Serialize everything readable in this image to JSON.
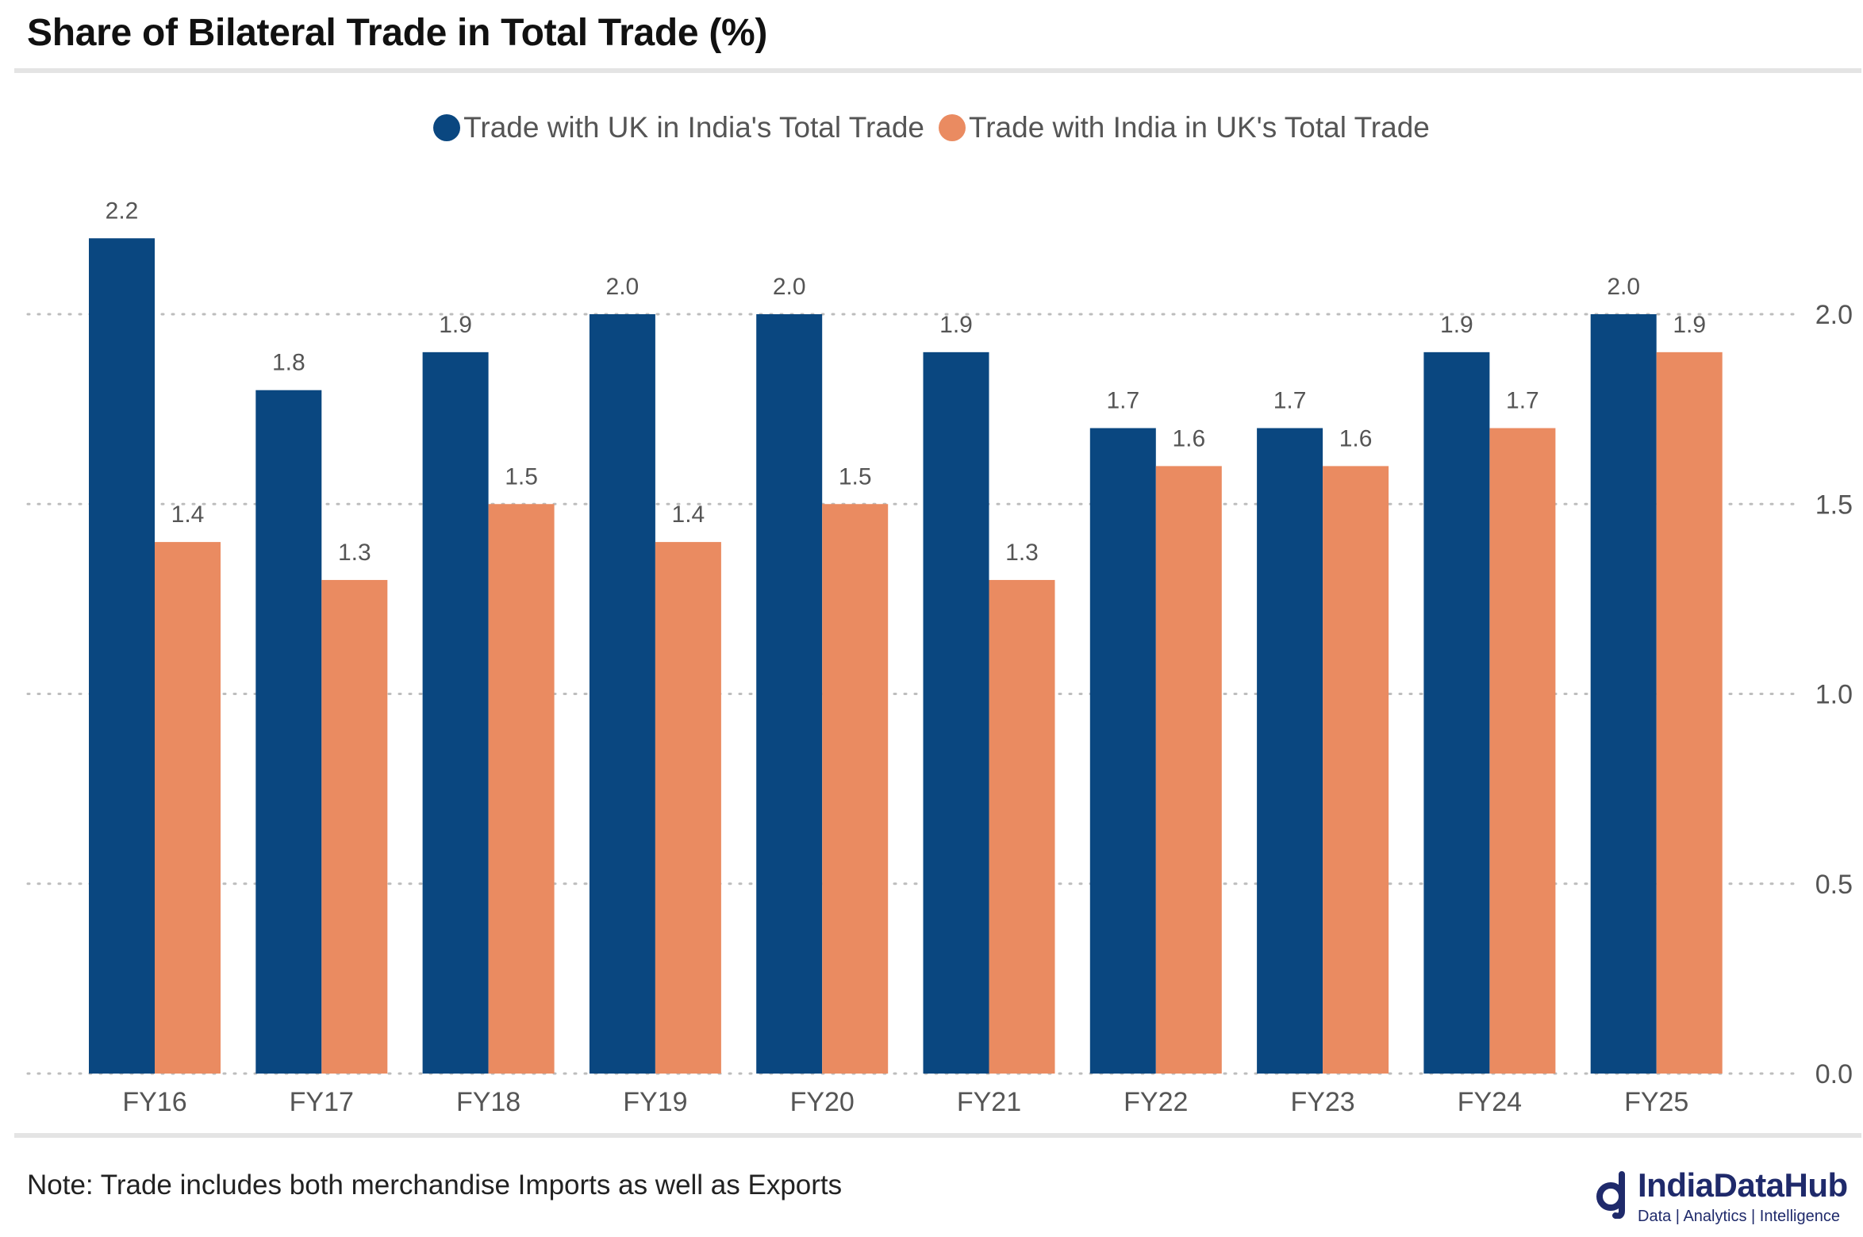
{
  "title": "Share of Bilateral Trade in Total Trade (%)",
  "note": "Note: Trade includes both merchandise Imports as well as Exports",
  "brand": {
    "name": "IndiaDataHub",
    "tagline": "Data | Analytics | Intelligence",
    "logo_icon": "indiadatahub-logo-icon"
  },
  "colors": {
    "series1": "#0a4780",
    "series2": "#ea8b61",
    "grid": "#bdbdbd",
    "tick": "#555555",
    "label": "#555555"
  },
  "chart_data": {
    "type": "bar",
    "title": "Share of Bilateral Trade in Total Trade (%)",
    "categories": [
      "FY16",
      "FY17",
      "FY18",
      "FY19",
      "FY20",
      "FY21",
      "FY22",
      "FY23",
      "FY24",
      "FY25"
    ],
    "series": [
      {
        "name": "Trade with UK in India's Total Trade",
        "values": [
          2.2,
          1.8,
          1.9,
          2.0,
          2.0,
          1.9,
          1.7,
          1.7,
          1.9,
          2.0
        ]
      },
      {
        "name": "Trade with India in UK's Total Trade",
        "values": [
          1.4,
          1.3,
          1.5,
          1.4,
          1.5,
          1.3,
          1.6,
          1.6,
          1.7,
          1.9
        ]
      }
    ],
    "data_labels": [
      [
        "2.2",
        "1.8",
        "1.9",
        "2.0",
        "2.0",
        "1.9",
        "1.7",
        "1.7",
        "1.9",
        "2.0"
      ],
      [
        "1.4",
        "1.3",
        "1.5",
        "1.4",
        "1.5",
        "1.3",
        "1.6",
        "1.6",
        "1.7",
        "1.9"
      ]
    ],
    "yticks": [
      0.0,
      0.5,
      1.0,
      1.5,
      2.0
    ],
    "ytick_labels": [
      "0.0",
      "0.5",
      "1.0",
      "1.5",
      "2.0"
    ],
    "ylim": [
      0,
      2.3
    ],
    "y_axis_side": "right",
    "grid": true,
    "legend_position": "top-center",
    "xlabel": "",
    "ylabel": ""
  }
}
